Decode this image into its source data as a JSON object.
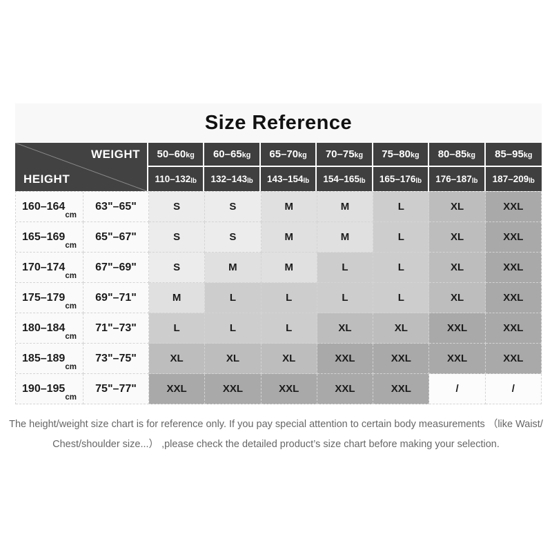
{
  "title": "Size Reference",
  "corner": {
    "weight_label": "WEIGHT",
    "height_label": "HEIGHT"
  },
  "units": {
    "kg": "kg",
    "lb": "lb",
    "cm": "cm"
  },
  "chart_data": {
    "type": "table",
    "title": "Size Reference",
    "column_headers_kg": [
      "50–60kg",
      "60–65kg",
      "65–70kg",
      "70–75kg",
      "75–80kg",
      "80–85kg",
      "85–95kg"
    ],
    "column_headers_lb": [
      "110–132lb",
      "132–143lb",
      "143–154lb",
      "154–165lb",
      "165–176lb",
      "176–187lb",
      "187–209lb"
    ],
    "row_headers_cm": [
      "160–164cm",
      "165–169cm",
      "170–174cm",
      "175–179cm",
      "180–184cm",
      "185–189cm",
      "190–195cm"
    ],
    "row_headers_inch": [
      "63\"–65\"",
      "65\"–67\"",
      "67\"–69\"",
      "69\"–71\"",
      "71\"–73\"",
      "73\"–75\"",
      "75\"–77\""
    ],
    "matrix": [
      [
        "S",
        "S",
        "M",
        "M",
        "L",
        "XL",
        "XXL"
      ],
      [
        "S",
        "S",
        "M",
        "M",
        "L",
        "XL",
        "XXL"
      ],
      [
        "S",
        "M",
        "M",
        "L",
        "L",
        "XL",
        "XXL"
      ],
      [
        "M",
        "L",
        "L",
        "L",
        "L",
        "XL",
        "XXL"
      ],
      [
        "L",
        "L",
        "L",
        "XL",
        "XL",
        "XXL",
        "XXL"
      ],
      [
        "XL",
        "XL",
        "XL",
        "XXL",
        "XXL",
        "XXL",
        "XXL"
      ],
      [
        "XXL",
        "XXL",
        "XXL",
        "XXL",
        "XXL",
        "/",
        "/"
      ]
    ]
  },
  "weight_columns": [
    {
      "kg": "50–60",
      "lb": "110–132"
    },
    {
      "kg": "60–65",
      "lb": "132–143"
    },
    {
      "kg": "65–70",
      "lb": "143–154"
    },
    {
      "kg": "70–75",
      "lb": "154–165"
    },
    {
      "kg": "75–80",
      "lb": "165–176"
    },
    {
      "kg": "80–85",
      "lb": "176–187"
    },
    {
      "kg": "85–95",
      "lb": "187–209"
    }
  ],
  "rows": [
    {
      "cm": "160–164",
      "inch": "63\"–65\"",
      "sizes": [
        "S",
        "S",
        "M",
        "M",
        "L",
        "XL",
        "XXL"
      ]
    },
    {
      "cm": "165–169",
      "inch": "65\"–67\"",
      "sizes": [
        "S",
        "S",
        "M",
        "M",
        "L",
        "XL",
        "XXL"
      ]
    },
    {
      "cm": "170–174",
      "inch": "67\"–69\"",
      "sizes": [
        "S",
        "M",
        "M",
        "L",
        "L",
        "XL",
        "XXL"
      ]
    },
    {
      "cm": "175–179",
      "inch": "69\"–71\"",
      "sizes": [
        "M",
        "L",
        "L",
        "L",
        "L",
        "XL",
        "XXL"
      ]
    },
    {
      "cm": "180–184",
      "inch": "71\"–73\"",
      "sizes": [
        "L",
        "L",
        "L",
        "XL",
        "XL",
        "XXL",
        "XXL"
      ]
    },
    {
      "cm": "185–189",
      "inch": "73\"–75\"",
      "sizes": [
        "XL",
        "XL",
        "XL",
        "XXL",
        "XXL",
        "XXL",
        "XXL"
      ]
    },
    {
      "cm": "190–195",
      "inch": "75\"–77\"",
      "sizes": [
        "XXL",
        "XXL",
        "XXL",
        "XXL",
        "XXL",
        "/",
        "/"
      ]
    }
  ],
  "size_colors": {
    "S": "#ececec",
    "M": "#e0e0e0",
    "L": "#cdcdcd",
    "XL": "#bdbdbd",
    "XXL": "#a9a9a9",
    "/": "#fcfcfc"
  },
  "colors": {
    "header_bg": "#3f3f3f",
    "corner_bg": "#424242",
    "header_text": "#ffffff",
    "label_bg": "#fafafa",
    "title_bg": "#f8f8f8",
    "footer_text": "#666666",
    "dash_border": "#d4d4d4",
    "diagonal_line": "#8b8b8b"
  },
  "footer": {
    "line1": "The height/weight size chart is for reference only. If you pay special attention to certain body measurements （like Waist/",
    "line2": "Chest/shoulder size...） ,please check the detailed product’s size chart before making your selection."
  }
}
